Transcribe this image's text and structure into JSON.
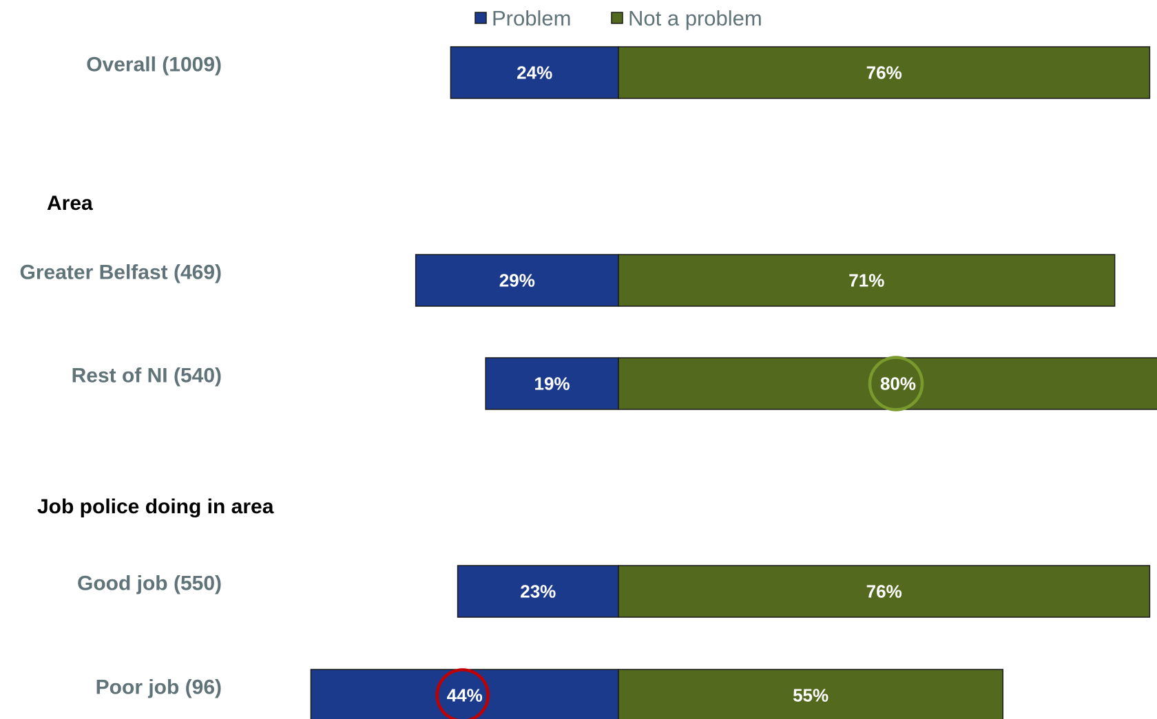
{
  "chart_data": {
    "type": "bar",
    "orientation": "horizontal",
    "stacked": true,
    "grid": false,
    "legend_position": "top",
    "colors": {
      "Problem": "#1c3a8c",
      "Not a problem": "#536a1e",
      "highlight_high": "#7a9a2e",
      "highlight_low": "#c00000"
    },
    "legend": [
      "Problem",
      "Not a problem"
    ],
    "sections": [
      {
        "heading": "",
        "rows": [
          {
            "category": "Overall (1009)",
            "problem": 24,
            "not_problem": 76,
            "problem_label": "24%",
            "not_problem_label": "76%"
          }
        ]
      },
      {
        "heading": "Area",
        "rows": [
          {
            "category": "Greater Belfast (469)",
            "problem": 29,
            "not_problem": 71,
            "problem_label": "29%",
            "not_problem_label": "71%"
          },
          {
            "category": "Rest of NI (540)",
            "problem": 19,
            "not_problem": 80,
            "problem_label": "19%",
            "not_problem_label": "80%",
            "highlight": "not_problem"
          }
        ]
      },
      {
        "heading": "Job police doing in area",
        "rows": [
          {
            "category": "Good job (550)",
            "problem": 23,
            "not_problem": 76,
            "problem_label": "23%",
            "not_problem_label": "76%"
          },
          {
            "category": "Poor job (96)",
            "problem": 44,
            "not_problem": 55,
            "problem_label": "44%",
            "not_problem_label": "55%",
            "highlight": "problem"
          }
        ]
      }
    ]
  }
}
